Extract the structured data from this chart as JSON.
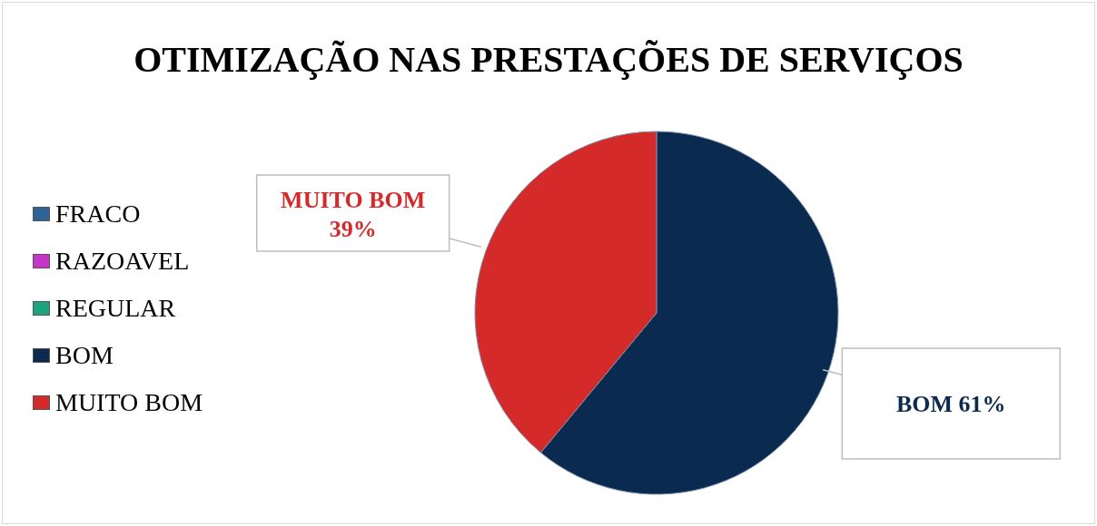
{
  "chart_data": {
    "type": "pie",
    "title": "OTIMIZAÇÃO NAS PRESTAÇÕES DE SERVIÇOS",
    "categories": [
      "FRACO",
      "RAZOAVEL",
      "REGULAR",
      "BOM",
      "MUITO BOM"
    ],
    "values": [
      0,
      0,
      0,
      61,
      39
    ],
    "colors": [
      "#2e6496",
      "#c436c8",
      "#1fa37f",
      "#0a2a50",
      "#d42a2a"
    ],
    "value_labels": [
      null,
      null,
      null,
      "BOM 61%",
      "MUITO BOM 39%"
    ],
    "legend": "left"
  }
}
